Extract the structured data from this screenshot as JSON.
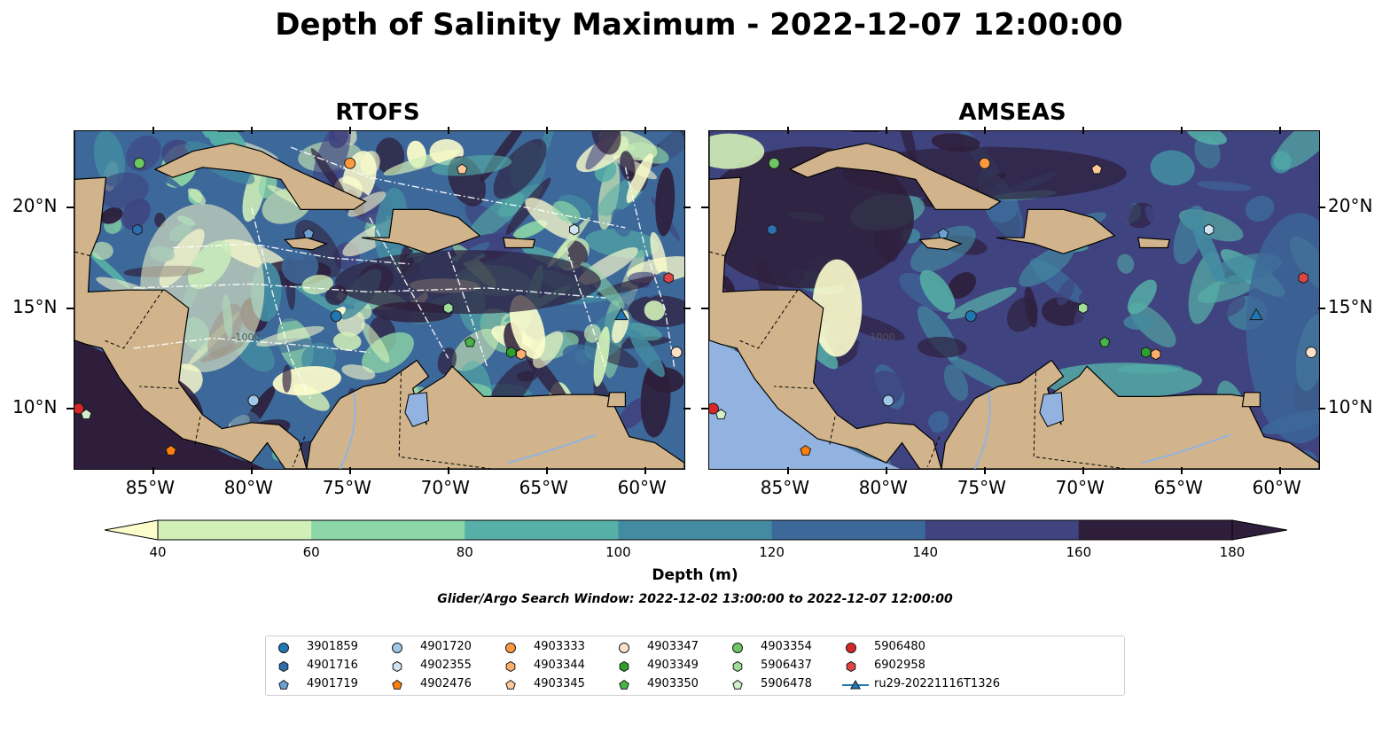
{
  "title": "Depth of Salinity Maximum - 2022-12-07 12:00:00",
  "panels": [
    {
      "name": "RTOFS"
    },
    {
      "name": "AMSEAS"
    }
  ],
  "map": {
    "lon_range": [
      -89.0,
      -58.0
    ],
    "lat_range": [
      7.0,
      23.8
    ],
    "x_ticks": [
      "85°W",
      "80°W",
      "75°W",
      "70°W",
      "65°W",
      "60°W"
    ],
    "x_tick_values": [
      -85,
      -80,
      -75,
      -70,
      -65,
      -60
    ],
    "y_ticks": [
      "20°N",
      "15°N",
      "10°N"
    ],
    "y_tick_values": [
      20,
      15,
      10
    ],
    "contour_label": "-1000",
    "colors": {
      "land": "#d2b48c",
      "water_body": "#92b3e0"
    }
  },
  "colorbar": {
    "label": "Depth (m)",
    "ticks": [
      "40",
      "60",
      "80",
      "100",
      "120",
      "140",
      "160",
      "180"
    ],
    "levels": [
      40,
      60,
      80,
      100,
      120,
      140,
      160,
      180
    ],
    "colors": [
      "#fdfdcc",
      "#d2efb7",
      "#8cd5a6",
      "#56b0a7",
      "#438ba1",
      "#3d689a",
      "#3f437f",
      "#2e1e3b"
    ]
  },
  "search_window": "Glider/Argo Search Window: 2022-12-02 13:00:00 to 2022-12-07 12:00:00",
  "legend": [
    {
      "label": "3901859",
      "marker": "circle",
      "color": "#1f77b4"
    },
    {
      "label": "4901716",
      "marker": "hexagon",
      "color": "#2c6fb0"
    },
    {
      "label": "4901719",
      "marker": "pentagon",
      "color": "#6aa0d4"
    },
    {
      "label": "4901720",
      "marker": "circle",
      "color": "#9fc8e8"
    },
    {
      "label": "4902355",
      "marker": "hexagon",
      "color": "#cfe4f5"
    },
    {
      "label": "4902476",
      "marker": "pentagon",
      "color": "#ff7f0e"
    },
    {
      "label": "4903333",
      "marker": "circle",
      "color": "#fd9a3e"
    },
    {
      "label": "4903344",
      "marker": "hexagon",
      "color": "#fdae6b"
    },
    {
      "label": "4903345",
      "marker": "pentagon",
      "color": "#fdc79a"
    },
    {
      "label": "4903347",
      "marker": "circle",
      "color": "#fde0c8"
    },
    {
      "label": "4903349",
      "marker": "hexagon",
      "color": "#2ca02c"
    },
    {
      "label": "4903350",
      "marker": "pentagon",
      "color": "#46b546"
    },
    {
      "label": "4903354",
      "marker": "circle",
      "color": "#6cc765"
    },
    {
      "label": "5906437",
      "marker": "hexagon",
      "color": "#a1dd9a"
    },
    {
      "label": "5906478",
      "marker": "pentagon",
      "color": "#d3f0cd"
    },
    {
      "label": "5906480",
      "marker": "circle",
      "color": "#d62728"
    },
    {
      "label": "6902958",
      "marker": "hexagon",
      "color": "#e04545"
    },
    {
      "label": "ru29-20221116T1326",
      "marker": "triangle-line",
      "color": "#1f77b4"
    }
  ],
  "floats": [
    {
      "id": "3901859",
      "lon": -75.7,
      "lat": 14.6
    },
    {
      "id": "4901716",
      "lon": -85.8,
      "lat": 18.9
    },
    {
      "id": "4901719",
      "lon": -77.1,
      "lat": 18.7
    },
    {
      "id": "4901720",
      "lon": -79.9,
      "lat": 10.4
    },
    {
      "id": "4902355",
      "lon": -63.6,
      "lat": 18.9
    },
    {
      "id": "4902476",
      "lon": -84.1,
      "lat": 7.9
    },
    {
      "id": "4903333",
      "lon": -75.0,
      "lat": 22.2
    },
    {
      "id": "4903344",
      "lon": -66.3,
      "lat": 12.7
    },
    {
      "id": "4903345",
      "lon": -69.3,
      "lat": 21.9
    },
    {
      "id": "4903347",
      "lon": -58.4,
      "lat": 12.8
    },
    {
      "id": "4903349",
      "lon": -66.8,
      "lat": 12.8
    },
    {
      "id": "4903350",
      "lon": -68.9,
      "lat": 13.3
    },
    {
      "id": "4903354",
      "lon": -85.7,
      "lat": 22.2
    },
    {
      "id": "5906437",
      "lon": -70.0,
      "lat": 15.0
    },
    {
      "id": "5906478",
      "lon": -88.4,
      "lat": 9.7
    },
    {
      "id": "5906480",
      "lon": -88.8,
      "lat": 10.0
    },
    {
      "id": "6902958",
      "lon": -58.8,
      "lat": 16.5
    },
    {
      "id": "ru29-20221116T1326",
      "lon": -61.2,
      "lat": 14.6
    }
  ]
}
